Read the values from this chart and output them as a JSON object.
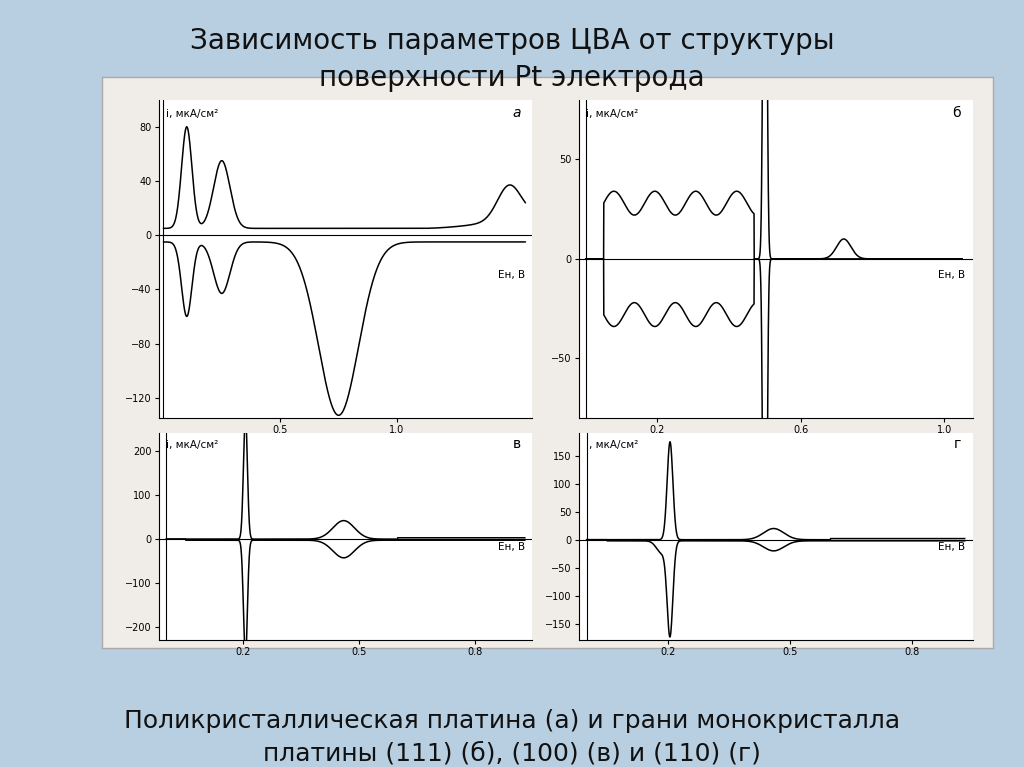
{
  "title": "Зависимость параметров ЦВА от структуры\nповерхности Pt электрода",
  "subtitle": "Поликристаллическая платина (а) и грани монокристалла\nплатины (111) (б), (100) (в) и (110) (г)",
  "title_fontsize": 20,
  "subtitle_fontsize": 18,
  "bg_color": "#b8cfe2",
  "panel_bg": "#f0ede8",
  "text_color": "#111111",
  "label_a": "а",
  "label_b": "б",
  "label_c": "в",
  "label_d": "г",
  "ylabel": "i, мкА/см²",
  "xlabel": "Eн, В"
}
